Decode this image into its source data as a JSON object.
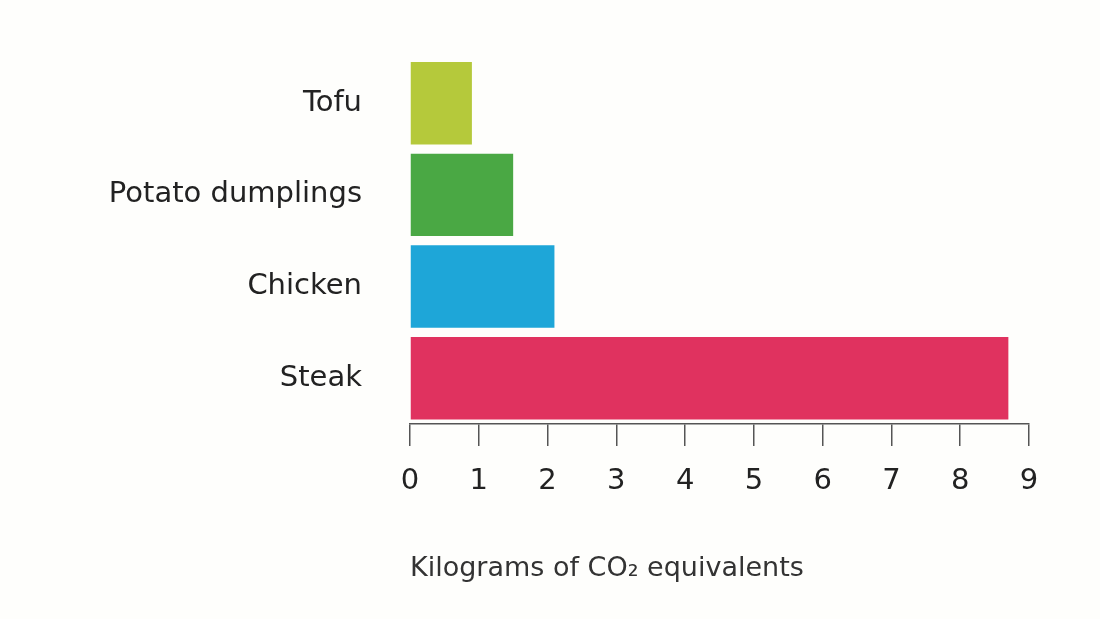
{
  "chart_data": {
    "type": "bar",
    "orientation": "horizontal",
    "xlabel": "Kilograms of CO₂ equivalents",
    "categories": [
      "Tofu",
      "Potato dumplings",
      "Chicken",
      "Steak"
    ],
    "values": [
      0.9,
      1.5,
      2.1,
      8.7
    ],
    "colors": [
      "#b5c93b",
      "#4aa844",
      "#1ea6d8",
      "#e0325f"
    ],
    "xlim": [
      0,
      9
    ],
    "xticks": [
      0,
      1,
      2,
      3,
      4,
      5,
      6,
      7,
      8,
      9
    ],
    "grid": false,
    "legend": false
  }
}
